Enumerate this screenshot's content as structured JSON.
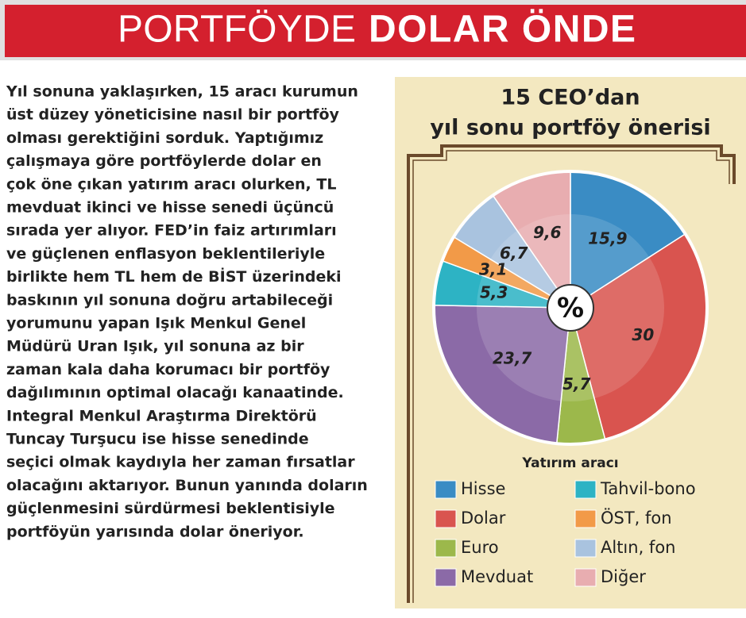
{
  "header": {
    "title_light": "PORTFÖYDE",
    "title_bold": "DOLAR ÖNDE"
  },
  "article": {
    "lines": [
      "Yıl sonuna yaklaşırken, 15 aracı kurumun",
      "üst düzey yöneticisine nasıl bir portföy",
      "olması gerektiğini sorduk. Yaptığımız",
      "çalışmaya göre portföylerde dolar en",
      "çok öne çıkan yatırım aracı olurken, TL",
      "mevduat ikinci ve hisse senedi üçüncü",
      "sırada yer alıyor. FED’in faiz artırımları",
      "ve güçlenen enflasyon beklentileriyle",
      "birlikte hem TL hem de BİST üzerindeki",
      "baskının yıl sonuna doğru artabileceği",
      "yorumunu yapan Işık Menkul Genel",
      "Müdürü Uran Işık, yıl sonuna az bir",
      "zaman kala daha korumacı bir portföy",
      "dağılımının optimal olacağı kanaatinde.",
      "Integral Menkul Araştırma Direktörü",
      "Tuncay Turşucu ise hisse senedinde",
      "seçici olmak kaydıyla her zaman fırsatlar",
      "olacağını aktarıyor. Bunun yanında doların",
      "güçlenmesini sürdürmesi beklentisiyle",
      "portföyün yarısında dolar öneriyor."
    ]
  },
  "chart_data": {
    "type": "pie",
    "title": [
      "15 CEO’dan",
      "yıl sonu portföy önerisi"
    ],
    "center_label": "%",
    "legend_title": "Yatırım aracı",
    "categories": [
      "Hisse",
      "Dolar",
      "Euro",
      "Mevduat",
      "Tahvil-bono",
      "ÖST, fon",
      "Altın, fon",
      "Diğer"
    ],
    "values": [
      15.9,
      30,
      5.7,
      23.7,
      5.3,
      3.1,
      6.7,
      9.6
    ],
    "value_labels": [
      "15,9",
      "30",
      "5,7",
      "23,7",
      "5,3",
      "3,1",
      "6,7",
      "9,6"
    ],
    "colors": [
      "#3a8cc4",
      "#d9544f",
      "#9cb84b",
      "#8b6aa7",
      "#2db3c4",
      "#f29a48",
      "#a9c3df",
      "#e8adb0"
    ]
  }
}
